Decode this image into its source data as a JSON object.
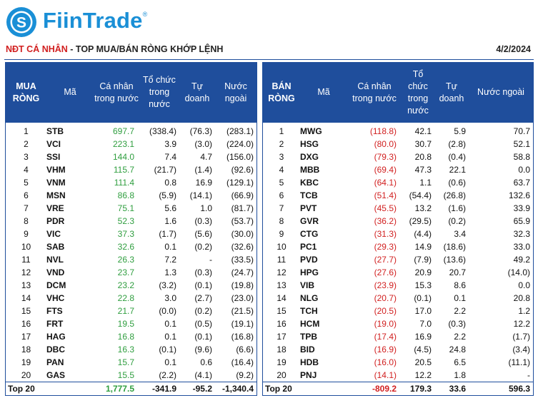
{
  "brand": {
    "name": "FiinTrade",
    "mark": "®",
    "logo_letter": "S"
  },
  "subtitle": {
    "highlight": "NĐT CÁ NHÂN",
    "rest": " - TOP MUA/BÁN RÒNG KHỚP LỆNH"
  },
  "date": "4/2/2024",
  "colors": {
    "header_bg": "#1f4e9c",
    "positive": "#2f9e3f",
    "negative": "#d11f1f",
    "brand": "#1a8fd6"
  },
  "buy": {
    "headers": [
      "MUA RÒNG",
      "Mã",
      "Cá nhân trong nước",
      "Tổ chức trong nước",
      "Tự doanh",
      "Nước ngoài"
    ],
    "rows": [
      [
        "1",
        "STB",
        "697.7",
        "(338.4)",
        "(76.3)",
        "(283.1)"
      ],
      [
        "2",
        "VCI",
        "223.1",
        "3.9",
        "(3.0)",
        "(224.0)"
      ],
      [
        "3",
        "SSI",
        "144.0",
        "7.4",
        "4.7",
        "(156.0)"
      ],
      [
        "4",
        "VHM",
        "115.7",
        "(21.7)",
        "(1.4)",
        "(92.6)"
      ],
      [
        "5",
        "VNM",
        "111.4",
        "0.8",
        "16.9",
        "(129.1)"
      ],
      [
        "6",
        "MSN",
        "86.8",
        "(5.9)",
        "(14.1)",
        "(66.9)"
      ],
      [
        "7",
        "VRE",
        "75.1",
        "5.6",
        "1.0",
        "(81.7)"
      ],
      [
        "8",
        "PDR",
        "52.3",
        "1.6",
        "(0.3)",
        "(53.7)"
      ],
      [
        "9",
        "VIC",
        "37.3",
        "(1.7)",
        "(5.6)",
        "(30.0)"
      ],
      [
        "10",
        "SAB",
        "32.6",
        "0.1",
        "(0.2)",
        "(32.6)"
      ],
      [
        "11",
        "NVL",
        "26.3",
        "7.2",
        "-",
        "(33.5)"
      ],
      [
        "12",
        "VND",
        "23.7",
        "1.3",
        "(0.3)",
        "(24.7)"
      ],
      [
        "13",
        "DCM",
        "23.2",
        "(3.2)",
        "(0.1)",
        "(19.8)"
      ],
      [
        "14",
        "VHC",
        "22.8",
        "3.0",
        "(2.7)",
        "(23.0)"
      ],
      [
        "15",
        "FTS",
        "21.7",
        "(0.0)",
        "(0.2)",
        "(21.5)"
      ],
      [
        "16",
        "FRT",
        "19.5",
        "0.1",
        "(0.5)",
        "(19.1)"
      ],
      [
        "17",
        "HAG",
        "16.8",
        "0.1",
        "(0.1)",
        "(16.8)"
      ],
      [
        "18",
        "DBC",
        "16.3",
        "(0.1)",
        "(9.6)",
        "(6.6)"
      ],
      [
        "19",
        "PAN",
        "15.7",
        "0.1",
        "0.6",
        "(16.4)"
      ],
      [
        "20",
        "GAS",
        "15.5",
        "(2.2)",
        "(4.1)",
        "(9.2)"
      ]
    ],
    "total": {
      "label": "Top 20",
      "values": [
        "1,777.5",
        "-341.9",
        "-95.2",
        "-1,340.4"
      ]
    }
  },
  "sell": {
    "headers": [
      "BÁN RÒNG",
      "Mã",
      "Cá nhân trong nước",
      "Tổ chức trong nước",
      "Tự doanh",
      "Nước ngoài"
    ],
    "rows": [
      [
        "1",
        "MWG",
        "(118.8)",
        "42.1",
        "5.9",
        "70.7"
      ],
      [
        "2",
        "HSG",
        "(80.0)",
        "30.7",
        "(2.8)",
        "52.1"
      ],
      [
        "3",
        "DXG",
        "(79.3)",
        "20.8",
        "(0.4)",
        "58.8"
      ],
      [
        "4",
        "MBB",
        "(69.4)",
        "47.3",
        "22.1",
        "0.0"
      ],
      [
        "5",
        "KBC",
        "(64.1)",
        "1.1",
        "(0.6)",
        "63.7"
      ],
      [
        "6",
        "TCB",
        "(51.4)",
        "(54.4)",
        "(26.8)",
        "132.6"
      ],
      [
        "7",
        "PVT",
        "(45.5)",
        "13.2",
        "(1.6)",
        "33.9"
      ],
      [
        "8",
        "GVR",
        "(36.2)",
        "(29.5)",
        "(0.2)",
        "65.9"
      ],
      [
        "9",
        "CTG",
        "(31.3)",
        "(4.4)",
        "3.4",
        "32.3"
      ],
      [
        "10",
        "PC1",
        "(29.3)",
        "14.9",
        "(18.6)",
        "33.0"
      ],
      [
        "11",
        "PVD",
        "(27.7)",
        "(7.9)",
        "(13.6)",
        "49.2"
      ],
      [
        "12",
        "HPG",
        "(27.6)",
        "20.9",
        "20.7",
        "(14.0)"
      ],
      [
        "13",
        "VIB",
        "(23.9)",
        "15.3",
        "8.6",
        "0.0"
      ],
      [
        "14",
        "NLG",
        "(20.7)",
        "(0.1)",
        "0.1",
        "20.8"
      ],
      [
        "15",
        "TCH",
        "(20.5)",
        "17.0",
        "2.2",
        "1.2"
      ],
      [
        "16",
        "HCM",
        "(19.0)",
        "7.0",
        "(0.3)",
        "12.2"
      ],
      [
        "17",
        "TPB",
        "(17.4)",
        "16.9",
        "2.2",
        "(1.7)"
      ],
      [
        "18",
        "BID",
        "(16.9)",
        "(4.5)",
        "24.8",
        "(3.4)"
      ],
      [
        "19",
        "HDB",
        "(16.0)",
        "20.5",
        "6.5",
        "(11.1)"
      ],
      [
        "20",
        "PNJ",
        "(14.1)",
        "12.2",
        "1.8",
        "-"
      ]
    ],
    "total": {
      "label": "Top 20",
      "values": [
        "-809.2",
        "179.3",
        "33.6",
        "596.3"
      ]
    }
  }
}
